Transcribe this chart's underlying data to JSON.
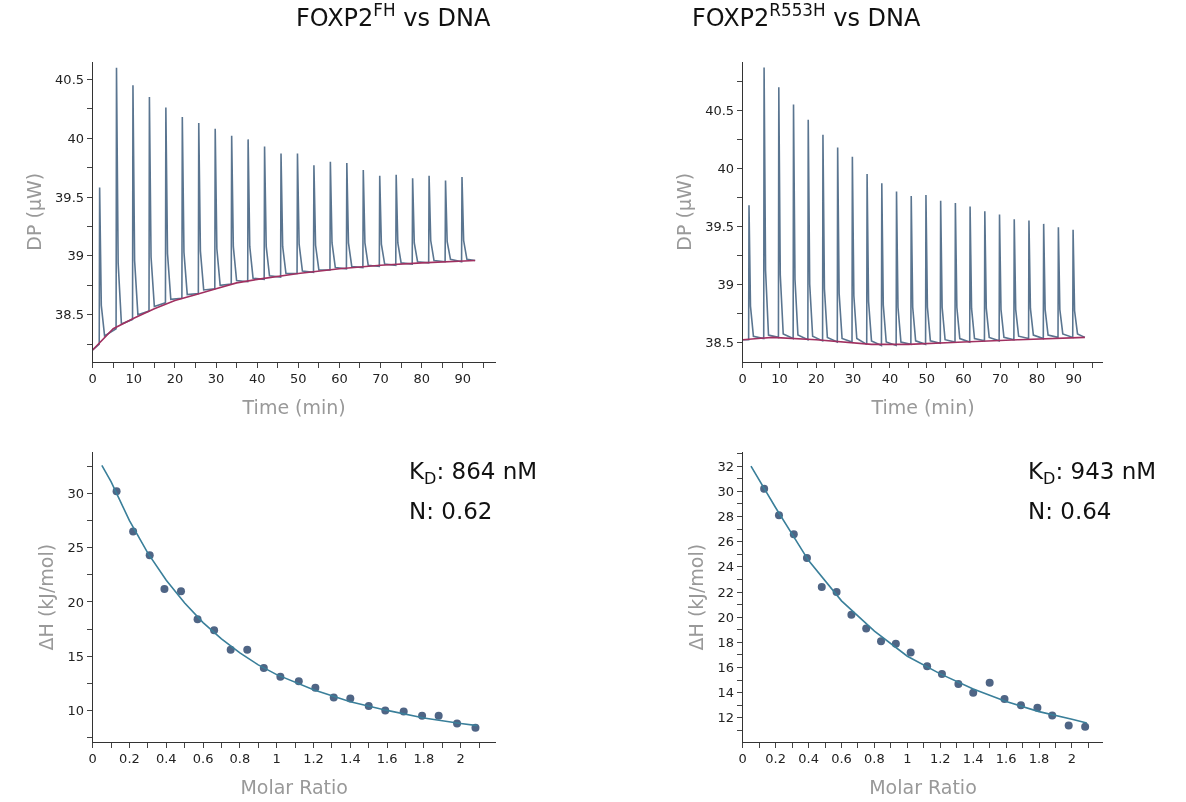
{
  "chart_data": [
    {
      "type": "line",
      "title": "FOXP2$^{FH}$ vs DNA",
      "xlabel": "Time (min)",
      "ylabel": "DP (µW)",
      "xlim": [
        0,
        98
      ],
      "xticks": [
        0,
        {
          "value": 5,
          "label": null
        },
        10,
        {
          "value": 15,
          "label": null
        },
        20,
        {
          "value": 25,
          "label": null
        },
        30,
        {
          "value": 35,
          "label": null
        },
        40,
        {
          "value": 45,
          "label": null
        },
        50,
        {
          "value": 55,
          "label": null
        },
        60,
        {
          "value": 65,
          "label": null
        },
        70,
        {
          "value": 75,
          "label": null
        },
        80,
        {
          "value": 85,
          "label": null
        },
        90,
        {
          "value": 95,
          "label": null
        }
      ],
      "ylim": [
        38.1,
        40.65
      ],
      "yticks": [
        {
          "value": 38.25,
          "label": null
        },
        38.5,
        {
          "value": 38.75,
          "label": null
        },
        39,
        {
          "value": 39.25,
          "label": null
        },
        39.5,
        {
          "value": 39.75,
          "label": null
        },
        40,
        {
          "value": 40.25,
          "label": null
        },
        40.5
      ],
      "series": [
        {
          "color": "#5a7590",
          "x": [
            0,
            1.6,
            1.7,
            2.1,
            2.9,
            5.7,
            5.8,
            6.2,
            7.0,
            9.7,
            9.8,
            10.2,
            11.0,
            13.7,
            13.8,
            14.2,
            15.0,
            17.7,
            17.8,
            18.2,
            19.0,
            21.7,
            21.8,
            22.2,
            23.0,
            25.7,
            25.8,
            26.2,
            27.0,
            29.7,
            29.8,
            30.2,
            31.0,
            33.7,
            33.8,
            34.2,
            35.0,
            37.7,
            37.8,
            38.2,
            39.0,
            41.7,
            41.8,
            42.2,
            43.0,
            45.7,
            45.8,
            46.2,
            47.0,
            49.7,
            49.8,
            50.2,
            51.0,
            53.7,
            53.8,
            54.2,
            55.0,
            57.7,
            57.8,
            58.2,
            59.0,
            61.7,
            61.8,
            62.2,
            63.0,
            65.7,
            65.8,
            66.2,
            67.0,
            69.7,
            69.8,
            70.2,
            71.0,
            73.7,
            73.8,
            74.2,
            75.0,
            77.7,
            77.8,
            78.2,
            79.0,
            81.7,
            81.8,
            82.2,
            83.0,
            85.7,
            85.8,
            86.2,
            87.0,
            89.7,
            89.8,
            90.2,
            91.0,
            93
          ],
          "values": [
            38.2,
            38.25,
            39.58,
            38.58,
            38.32,
            38.38,
            40.6,
            38.94,
            38.42,
            38.46,
            40.45,
            38.96,
            38.5,
            38.53,
            40.35,
            38.99,
            38.57,
            38.6,
            40.26,
            39.02,
            38.63,
            38.64,
            40.18,
            39.03,
            38.67,
            38.68,
            40.13,
            39.04,
            38.71,
            38.72,
            40.08,
            39.06,
            38.75,
            38.76,
            40.02,
            39.08,
            38.79,
            38.78,
            39.99,
            39.08,
            38.81,
            38.8,
            39.93,
            39.08,
            38.83,
            38.82,
            39.87,
            39.08,
            38.85,
            38.85,
            39.87,
            39.1,
            38.87,
            38.86,
            39.77,
            39.09,
            38.88,
            38.88,
            39.8,
            39.11,
            38.9,
            38.89,
            39.79,
            39.11,
            38.91,
            38.9,
            39.73,
            39.11,
            38.92,
            38.91,
            39.68,
            39.1,
            38.93,
            38.92,
            39.69,
            39.11,
            38.94,
            38.93,
            39.66,
            39.11,
            38.95,
            38.94,
            39.68,
            39.13,
            38.96,
            38.95,
            39.64,
            39.12,
            38.97,
            38.95,
            39.67,
            39.13,
            38.97,
            38.96
          ]
        },
        {
          "color": "#a03060",
          "x": [
            0,
            5,
            10,
            15,
            20,
            25,
            30,
            35,
            40,
            50,
            60,
            70,
            80,
            93
          ],
          "values": [
            38.2,
            38.38,
            38.47,
            38.55,
            38.62,
            38.67,
            38.72,
            38.77,
            38.8,
            38.85,
            38.89,
            38.92,
            38.94,
            38.96
          ]
        }
      ]
    },
    {
      "type": "line",
      "title": "FOXP2$^{R553H}$ vs DNA",
      "xlabel": "Time (min)",
      "ylabel": "DP (µW)",
      "xlim": [
        0,
        98
      ],
      "xticks": [
        0,
        {
          "value": 5,
          "label": null
        },
        10,
        {
          "value": 15,
          "label": null
        },
        20,
        {
          "value": 25,
          "label": null
        },
        30,
        {
          "value": 35,
          "label": null
        },
        40,
        {
          "value": 45,
          "label": null
        },
        50,
        {
          "value": 55,
          "label": null
        },
        60,
        {
          "value": 65,
          "label": null
        },
        70,
        {
          "value": 75,
          "label": null
        },
        80,
        {
          "value": 85,
          "label": null
        },
        90,
        {
          "value": 95,
          "label": null
        }
      ],
      "ylim": [
        38.33,
        40.92
      ],
      "yticks": [
        38.5,
        {
          "value": 38.75,
          "label": null
        },
        39,
        {
          "value": 39.25,
          "label": null
        },
        39.5,
        {
          "value": 39.75,
          "label": null
        },
        40,
        {
          "value": 40.25,
          "label": null
        },
        40.5,
        {
          "value": 40.75,
          "label": null
        }
      ],
      "series": [
        {
          "color": "#5a7590",
          "x": [
            0,
            1.6,
            1.7,
            2.1,
            2.9,
            5.7,
            5.8,
            6.2,
            7.0,
            9.7,
            9.8,
            10.2,
            11.0,
            13.7,
            13.8,
            14.2,
            15.0,
            17.7,
            17.8,
            18.2,
            19.0,
            21.7,
            21.8,
            22.2,
            23.0,
            25.7,
            25.8,
            26.2,
            27.0,
            29.7,
            29.8,
            30.2,
            31.0,
            33.7,
            33.8,
            34.2,
            35.0,
            37.7,
            37.8,
            38.2,
            39.0,
            41.7,
            41.8,
            42.2,
            43.0,
            45.7,
            45.8,
            46.2,
            47.0,
            49.7,
            49.8,
            50.2,
            51.0,
            53.7,
            53.8,
            54.2,
            55.0,
            57.7,
            57.8,
            58.2,
            59.0,
            61.7,
            61.8,
            62.2,
            63.0,
            65.7,
            65.8,
            66.2,
            67.0,
            69.7,
            69.8,
            70.2,
            71.0,
            73.7,
            73.8,
            74.2,
            75.0,
            77.7,
            77.8,
            78.2,
            79.0,
            81.7,
            81.8,
            82.2,
            83.0,
            85.7,
            85.8,
            86.2,
            87.0,
            89.7,
            89.8,
            90.2,
            91.0,
            93
          ],
          "values": [
            38.52,
            38.52,
            39.68,
            38.81,
            38.55,
            38.53,
            40.87,
            39.12,
            38.56,
            38.54,
            40.7,
            39.08,
            38.57,
            38.53,
            40.55,
            39.04,
            38.56,
            38.52,
            40.42,
            39.0,
            38.55,
            38.51,
            40.29,
            38.96,
            38.54,
            38.5,
            40.18,
            38.92,
            38.53,
            38.5,
            40.1,
            38.9,
            38.53,
            38.48,
            39.95,
            38.85,
            38.51,
            38.47,
            39.87,
            38.82,
            38.5,
            38.47,
            39.8,
            38.8,
            38.5,
            38.48,
            39.76,
            38.8,
            38.51,
            38.48,
            39.77,
            38.8,
            38.51,
            38.49,
            39.72,
            38.8,
            38.52,
            38.5,
            39.7,
            38.8,
            38.53,
            38.5,
            39.67,
            38.79,
            38.53,
            38.51,
            39.63,
            38.79,
            38.54,
            38.51,
            39.6,
            38.78,
            38.54,
            38.52,
            39.56,
            38.78,
            38.55,
            38.53,
            39.55,
            38.79,
            38.56,
            38.53,
            39.52,
            38.78,
            38.56,
            38.54,
            39.49,
            38.78,
            38.57,
            38.54,
            39.47,
            38.77,
            38.57,
            38.54
          ]
        },
        {
          "color": "#a03060",
          "x": [
            0,
            8,
            20,
            35,
            45,
            60,
            75,
            93
          ],
          "values": [
            38.52,
            38.54,
            38.52,
            38.48,
            38.48,
            38.5,
            38.52,
            38.54
          ]
        }
      ]
    },
    {
      "type": "scatter",
      "xlabel": "Molar Ratio",
      "ylabel": "ΔH (kJ/mol)",
      "annotations": [
        "K$_{D}$: 864 nM",
        "N: 0.62"
      ],
      "xlim": [
        0,
        2.19
      ],
      "xticks": [
        0,
        {
          "value": 0.1,
          "label": null
        },
        0.2,
        {
          "value": 0.3,
          "label": null
        },
        0.4,
        {
          "value": 0.5,
          "label": null
        },
        0.6,
        {
          "value": 0.7,
          "label": null
        },
        0.8,
        {
          "value": 0.9,
          "label": null
        },
        1,
        {
          "value": 1.1,
          "label": null
        },
        1.2,
        {
          "value": 1.3,
          "label": null
        },
        1.4,
        {
          "value": 1.5,
          "label": null
        },
        1.6,
        {
          "value": 1.7,
          "label": null
        },
        1.8,
        {
          "value": 1.9,
          "label": null
        },
        2,
        {
          "value": 2.1,
          "label": null
        }
      ],
      "ylim": [
        7.1,
        33.8
      ],
      "yticks": [
        {
          "value": 7.5,
          "label": null
        },
        10,
        {
          "value": 12.5,
          "label": null
        },
        15,
        {
          "value": 17.5,
          "label": null
        },
        20,
        {
          "value": 22.5,
          "label": null
        },
        25,
        {
          "value": 27.5,
          "label": null
        },
        30,
        {
          "value": 32.5,
          "label": null
        }
      ],
      "series": [
        {
          "color": "#4f6585",
          "marker": "circle",
          "x": [
            0.13,
            0.22,
            0.31,
            0.39,
            0.48,
            0.57,
            0.66,
            0.75,
            0.84,
            0.93,
            1.02,
            1.12,
            1.21,
            1.31,
            1.4,
            1.5,
            1.59,
            1.69,
            1.79,
            1.88,
            1.98,
            2.08
          ],
          "values": [
            30.2,
            26.5,
            24.3,
            21.2,
            21.0,
            18.4,
            17.4,
            15.6,
            15.6,
            13.9,
            13.1,
            12.7,
            12.1,
            11.2,
            11.1,
            10.4,
            10.0,
            9.9,
            9.5,
            9.5,
            8.8,
            8.4
          ]
        },
        {
          "type": "line",
          "color": "#3a7f9a",
          "x": [
            0.05,
            0.1,
            0.2,
            0.3,
            0.4,
            0.5,
            0.6,
            0.7,
            0.8,
            0.9,
            1.0,
            1.2,
            1.4,
            1.6,
            1.8,
            2.0,
            2.09
          ],
          "values": [
            32.6,
            31.1,
            27.5,
            24.5,
            22.0,
            19.9,
            18.1,
            16.6,
            15.3,
            14.2,
            13.3,
            11.9,
            10.8,
            10.0,
            9.3,
            8.8,
            8.6
          ]
        }
      ]
    },
    {
      "type": "scatter",
      "xlabel": "Molar Ratio",
      "ylabel": "ΔH (kJ/mol)",
      "annotations": [
        "K$_{D}$: 943 nM",
        "N: 0.64"
      ],
      "xlim": [
        0,
        2.19
      ],
      "xticks": [
        0,
        {
          "value": 0.1,
          "label": null
        },
        0.2,
        {
          "value": 0.3,
          "label": null
        },
        0.4,
        {
          "value": 0.5,
          "label": null
        },
        0.6,
        {
          "value": 0.7,
          "label": null
        },
        0.8,
        {
          "value": 0.9,
          "label": null
        },
        1,
        {
          "value": 1.1,
          "label": null
        },
        1.2,
        {
          "value": 1.3,
          "label": null
        },
        1.4,
        {
          "value": 1.5,
          "label": null
        },
        1.6,
        {
          "value": 1.7,
          "label": null
        },
        1.8,
        {
          "value": 1.9,
          "label": null
        },
        2,
        {
          "value": 2.1,
          "label": null
        }
      ],
      "ylim": [
        10.1,
        33.1
      ],
      "yticks": [
        {
          "value": 11,
          "label": null
        },
        12,
        {
          "value": 13,
          "label": null
        },
        14,
        {
          "value": 15,
          "label": null
        },
        16,
        {
          "value": 17,
          "label": null
        },
        18,
        {
          "value": 19,
          "label": null
        },
        20,
        {
          "value": 21,
          "label": null
        },
        22,
        {
          "value": 23,
          "label": null
        },
        24,
        {
          "value": 25,
          "label": null
        },
        26,
        {
          "value": 27,
          "label": null
        },
        28,
        {
          "value": 29,
          "label": null
        },
        30,
        {
          "value": 31,
          "label": null
        },
        32,
        {
          "value": 33,
          "label": null
        }
      ],
      "series": [
        {
          "color": "#4f6585",
          "marker": "circle",
          "x": [
            0.13,
            0.22,
            0.31,
            0.39,
            0.48,
            0.57,
            0.66,
            0.75,
            0.84,
            0.93,
            1.02,
            1.12,
            1.21,
            1.31,
            1.4,
            1.5,
            1.59,
            1.69,
            1.79,
            1.88,
            1.98,
            2.08
          ],
          "values": [
            30.2,
            28.1,
            26.6,
            24.7,
            22.4,
            22.0,
            20.2,
            19.1,
            18.1,
            17.9,
            17.2,
            16.1,
            15.5,
            14.7,
            14.0,
            14.8,
            13.5,
            13.0,
            12.8,
            12.2,
            11.4,
            11.3
          ]
        },
        {
          "type": "line",
          "color": "#3a7f9a",
          "x": [
            0.05,
            0.2,
            0.4,
            0.6,
            0.8,
            1.0,
            1.2,
            1.4,
            1.6,
            1.8,
            2.0,
            2.09
          ],
          "values": [
            32.0,
            28.7,
            24.5,
            21.3,
            18.9,
            16.9,
            15.5,
            14.3,
            13.3,
            12.5,
            11.9,
            11.6
          ]
        }
      ]
    }
  ]
}
